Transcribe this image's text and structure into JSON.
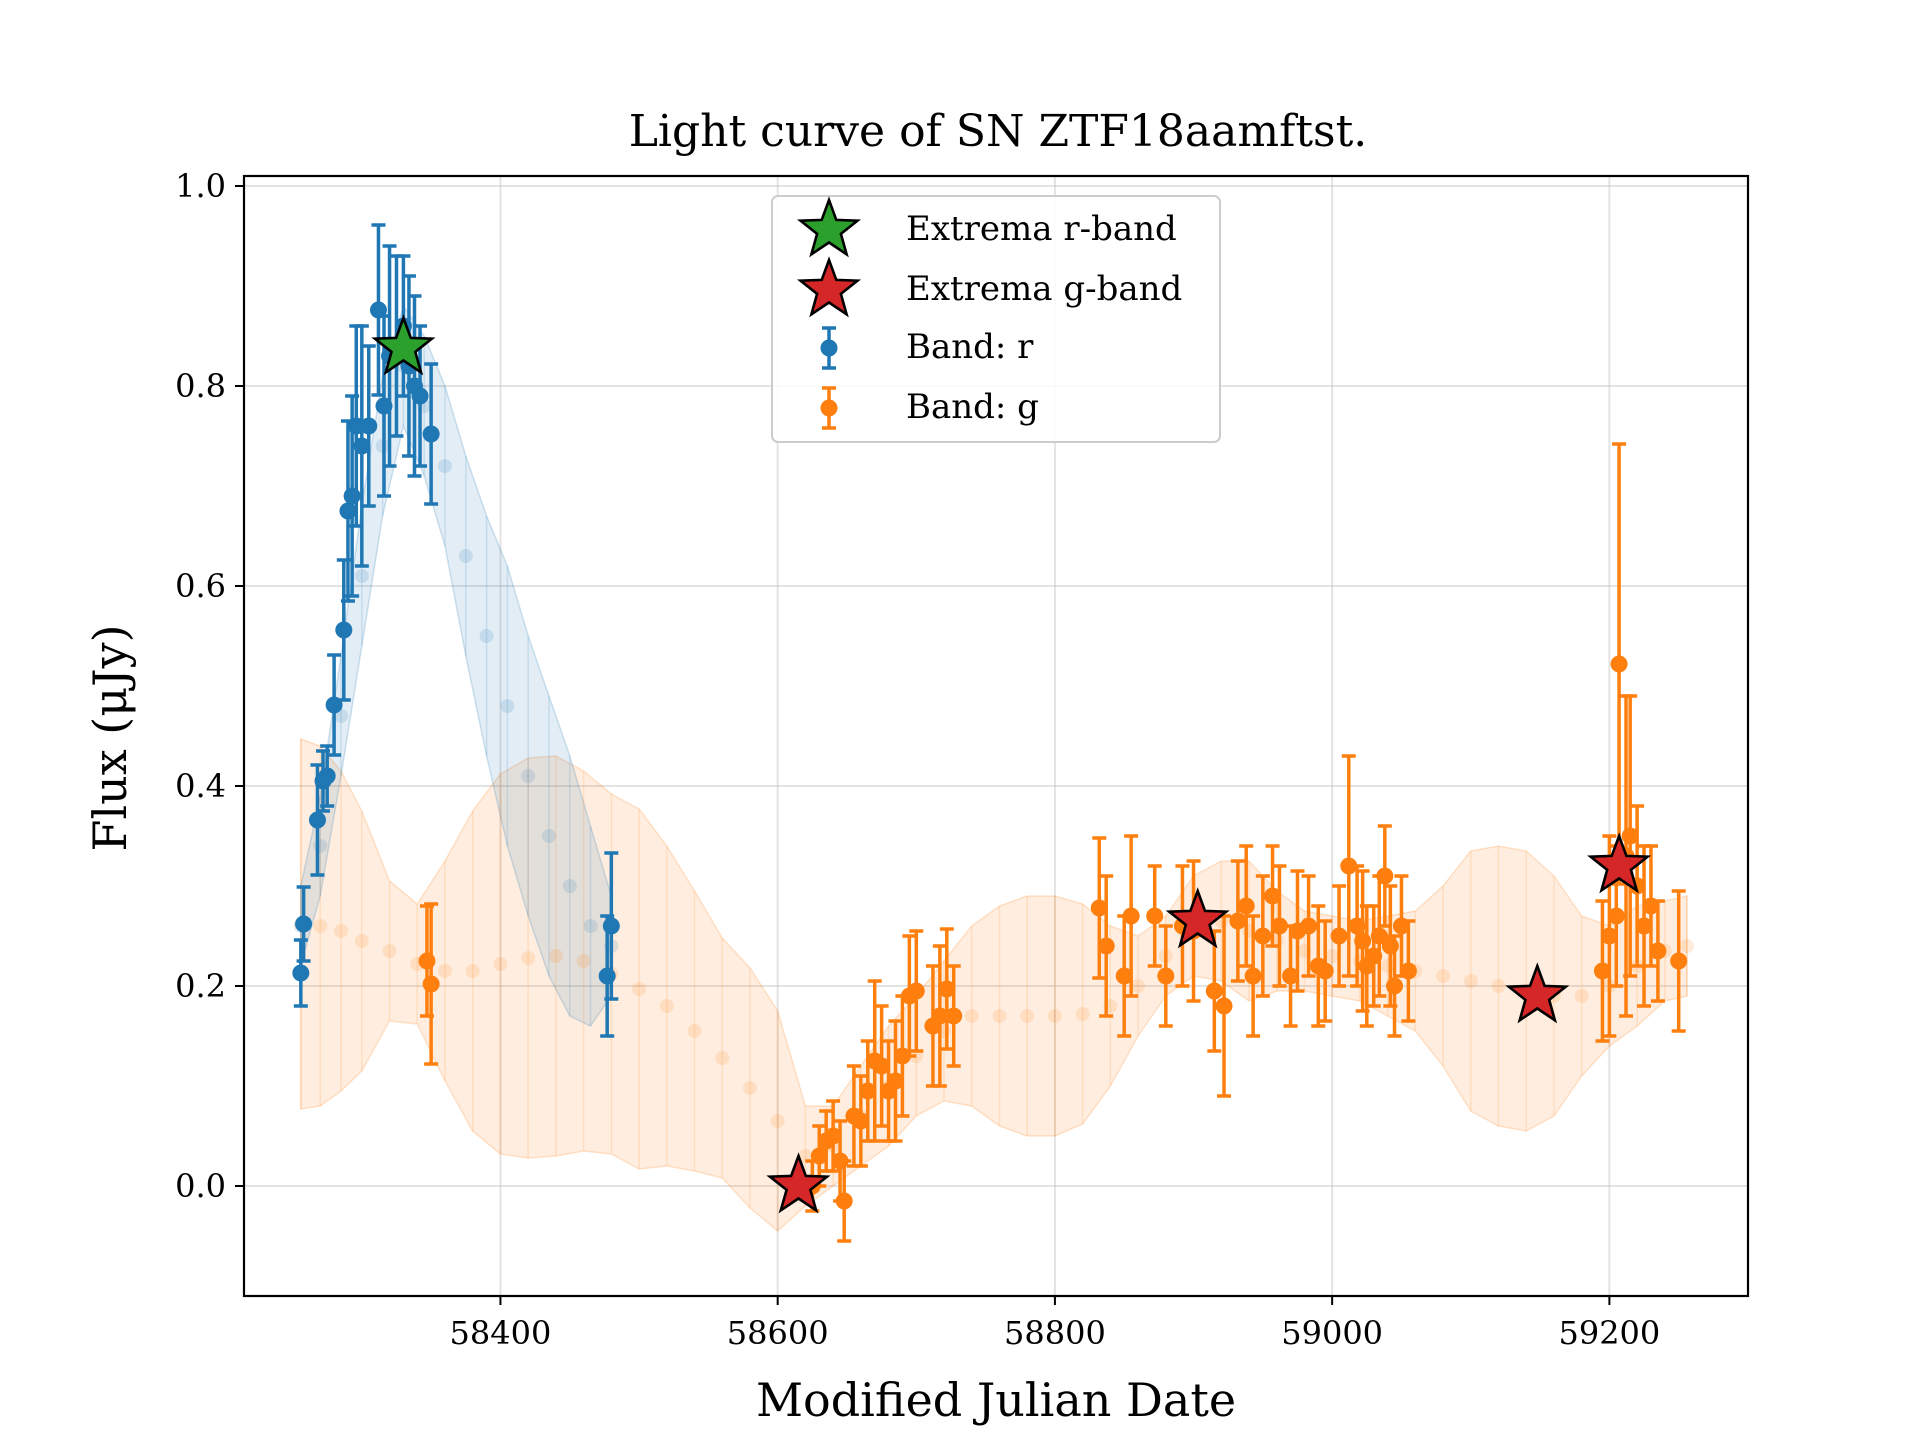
{
  "chart_data": {
    "type": "scatter",
    "title": "Light curve of SN ZTF18aamftst.",
    "xlabel": "Modified Julian Date",
    "ylabel": "Flux (μJy)",
    "xlim": [
      58215,
      59300
    ],
    "ylim": [
      -0.11,
      1.01
    ],
    "xticks": [
      58400,
      58600,
      58800,
      59000,
      59200
    ],
    "yticks": [
      0.0,
      0.2,
      0.4,
      0.6,
      0.8,
      1.0
    ],
    "xtick_labels": [
      "58400",
      "58600",
      "58800",
      "59000",
      "59200"
    ],
    "ytick_labels": [
      "0.0",
      "0.2",
      "0.4",
      "0.6",
      "0.8",
      "1.0"
    ],
    "grid": true,
    "legend_position": "top-center",
    "legend": [
      {
        "label": "Extrema r-band",
        "marker": "star",
        "color": "#2ca02c"
      },
      {
        "label": "Extrema g-band",
        "marker": "star",
        "color": "#d62728"
      },
      {
        "label": "Band: r",
        "marker": "errorbar",
        "color": "#1f77b4"
      },
      {
        "label": "Band: g",
        "marker": "errorbar",
        "color": "#ff7f0e"
      }
    ],
    "series": [
      {
        "name": "Band: r",
        "color": "#1f77b4",
        "x": [
          58256,
          58258,
          58268,
          58272,
          58275,
          58280,
          58287,
          58290,
          58293,
          58296,
          58300,
          58305,
          58312,
          58316,
          58320,
          58325,
          58330,
          58334,
          58338,
          58342,
          58350,
          58477,
          58480
        ],
        "y": [
          0.213,
          0.262,
          0.366,
          0.405,
          0.41,
          0.481,
          0.556,
          0.675,
          0.69,
          0.76,
          0.74,
          0.76,
          0.876,
          0.78,
          0.83,
          0.84,
          0.86,
          0.82,
          0.8,
          0.79,
          0.752,
          0.21,
          0.26
        ],
        "err": [
          0.033,
          0.037,
          0.055,
          0.03,
          0.03,
          0.05,
          0.07,
          0.09,
          0.1,
          0.1,
          0.12,
          0.08,
          0.085,
          0.09,
          0.11,
          0.09,
          0.07,
          0.09,
          0.09,
          0.07,
          0.07,
          0.06,
          0.073
        ]
      },
      {
        "name": "Band: g",
        "color": "#ff7f0e",
        "x": [
          58347,
          58350,
          58625,
          58630,
          58635,
          58640,
          58645,
          58648,
          58655,
          58660,
          58665,
          58670,
          58675,
          58680,
          58685,
          58690,
          58695,
          58700,
          58712,
          58717,
          58722,
          58727,
          58832,
          58837,
          58850,
          58855,
          58872,
          58880,
          58892,
          58900,
          58915,
          58922,
          58932,
          58938,
          58943,
          58950,
          58957,
          58962,
          58970,
          58975,
          58983,
          58990,
          58995,
          59005,
          59012,
          59018,
          59022,
          59025,
          59030,
          59034,
          59038,
          59042,
          59045,
          59050,
          59055,
          59195,
          59200,
          59205,
          59207,
          59212,
          59215,
          59220,
          59225,
          59230,
          59235,
          59250
        ],
        "y": [
          0.225,
          0.202,
          0.0,
          0.03,
          0.045,
          0.05,
          0.025,
          -0.015,
          0.07,
          0.065,
          0.095,
          0.125,
          0.12,
          0.095,
          0.105,
          0.13,
          0.19,
          0.195,
          0.16,
          0.17,
          0.197,
          0.17,
          0.278,
          0.24,
          0.21,
          0.27,
          0.27,
          0.21,
          0.26,
          0.255,
          0.195,
          0.18,
          0.265,
          0.28,
          0.21,
          0.25,
          0.29,
          0.26,
          0.21,
          0.255,
          0.26,
          0.22,
          0.215,
          0.25,
          0.32,
          0.26,
          0.245,
          0.22,
          0.23,
          0.25,
          0.31,
          0.24,
          0.2,
          0.26,
          0.215,
          0.215,
          0.25,
          0.27,
          0.522,
          0.33,
          0.35,
          0.3,
          0.26,
          0.28,
          0.235,
          0.225
        ],
        "err": [
          0.055,
          0.08,
          0.025,
          0.03,
          0.03,
          0.035,
          0.04,
          0.04,
          0.05,
          0.045,
          0.05,
          0.08,
          0.06,
          0.05,
          0.06,
          0.06,
          0.06,
          0.06,
          0.06,
          0.07,
          0.06,
          0.05,
          0.07,
          0.07,
          0.06,
          0.08,
          0.05,
          0.05,
          0.06,
          0.07,
          0.06,
          0.09,
          0.06,
          0.06,
          0.06,
          0.06,
          0.05,
          0.06,
          0.05,
          0.06,
          0.05,
          0.06,
          0.05,
          0.05,
          0.11,
          0.06,
          0.07,
          0.06,
          0.05,
          0.06,
          0.05,
          0.06,
          0.05,
          0.05,
          0.05,
          0.07,
          0.1,
          0.07,
          0.22,
          0.16,
          0.14,
          0.08,
          0.08,
          0.06,
          0.05,
          0.07
        ]
      },
      {
        "name": "r-band model",
        "color": "#1f77b4",
        "x": [
          58256,
          58270,
          58285,
          58300,
          58315,
          58330,
          58345,
          58360,
          58375,
          58390,
          58405,
          58420,
          58435,
          58450,
          58465,
          58480
        ],
        "y": [
          0.26,
          0.34,
          0.47,
          0.61,
          0.74,
          0.82,
          0.78,
          0.72,
          0.63,
          0.55,
          0.48,
          0.41,
          0.35,
          0.3,
          0.26,
          0.24
        ],
        "err": [
          0.04,
          0.05,
          0.06,
          0.07,
          0.07,
          0.06,
          0.07,
          0.08,
          0.1,
          0.12,
          0.14,
          0.14,
          0.14,
          0.13,
          0.1,
          0.05
        ]
      },
      {
        "name": "g-band model",
        "color": "#ff7f0e",
        "x": [
          58256,
          58270,
          58285,
          58300,
          58320,
          58340,
          58360,
          58380,
          58400,
          58420,
          58440,
          58460,
          58480,
          58500,
          58520,
          58540,
          58560,
          58580,
          58600,
          58620,
          58640,
          58660,
          58680,
          58700,
          58720,
          58740,
          58760,
          58780,
          58800,
          58820,
          58840,
          58860,
          58880,
          58900,
          58920,
          58940,
          58960,
          58980,
          59000,
          59020,
          59040,
          59060,
          59080,
          59100,
          59120,
          59140,
          59160,
          59180,
          59200,
          59220,
          59240,
          59256
        ],
        "y": [
          0.262,
          0.26,
          0.255,
          0.245,
          0.235,
          0.222,
          0.215,
          0.215,
          0.222,
          0.228,
          0.23,
          0.225,
          0.212,
          0.197,
          0.18,
          0.155,
          0.128,
          0.098,
          0.065,
          0.03,
          0.04,
          0.07,
          0.1,
          0.13,
          0.155,
          0.17,
          0.17,
          0.17,
          0.17,
          0.172,
          0.18,
          0.2,
          0.23,
          0.26,
          0.265,
          0.255,
          0.245,
          0.235,
          0.23,
          0.225,
          0.22,
          0.215,
          0.21,
          0.205,
          0.2,
          0.195,
          0.19,
          0.19,
          0.2,
          0.22,
          0.235,
          0.24
        ],
        "err": [
          0.185,
          0.18,
          0.16,
          0.13,
          0.07,
          0.06,
          0.11,
          0.16,
          0.19,
          0.2,
          0.2,
          0.19,
          0.18,
          0.18,
          0.16,
          0.14,
          0.12,
          0.12,
          0.11,
          0.05,
          0.04,
          0.05,
          0.06,
          0.06,
          0.07,
          0.09,
          0.11,
          0.12,
          0.12,
          0.11,
          0.08,
          0.05,
          0.04,
          0.05,
          0.06,
          0.07,
          0.05,
          0.04,
          0.04,
          0.04,
          0.05,
          0.06,
          0.09,
          0.13,
          0.14,
          0.14,
          0.12,
          0.08,
          0.06,
          0.06,
          0.05,
          0.05
        ]
      }
    ],
    "extrema": [
      {
        "band": "r",
        "x": 58330,
        "y": 0.838,
        "color": "#2ca02c"
      },
      {
        "band": "g",
        "x": 58615,
        "y": 0.0,
        "color": "#d62728"
      },
      {
        "band": "g",
        "x": 58903,
        "y": 0.265,
        "color": "#d62728"
      },
      {
        "band": "g",
        "x": 59148,
        "y": 0.19,
        "color": "#d62728"
      },
      {
        "band": "g",
        "x": 59207,
        "y": 0.32,
        "color": "#d62728"
      }
    ]
  }
}
